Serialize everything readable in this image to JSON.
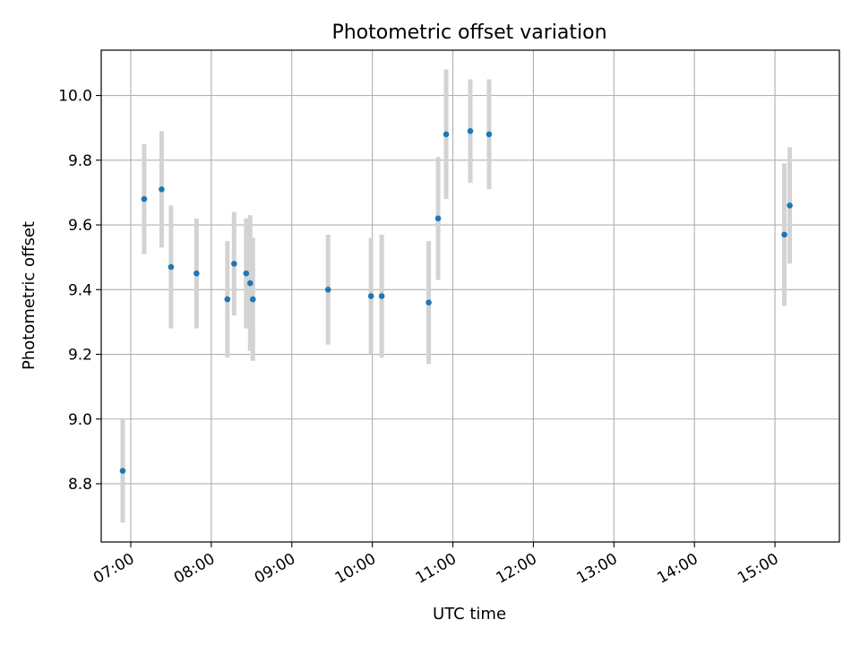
{
  "chart_data": {
    "type": "scatter",
    "title": "Photometric offset variation",
    "xlabel": "UTC time",
    "ylabel": "Photometric offset",
    "x_axis": "time (HH:MM, UTC)",
    "xlim": [
      "06:38",
      "15:48"
    ],
    "ylim": [
      8.62,
      10.14
    ],
    "xticks": [
      "07:00",
      "08:00",
      "09:00",
      "10:00",
      "11:00",
      "12:00",
      "13:00",
      "14:00",
      "15:00"
    ],
    "yticks": [
      "8.8",
      "9.0",
      "9.2",
      "9.4",
      "9.6",
      "9.8",
      "10.0"
    ],
    "grid": true,
    "x_tick_rotation": "30°",
    "series": [
      {
        "marker_color": "#1f77b4",
        "errorbar_color": "#d3d3d3",
        "points": [
          {
            "x": "06:54",
            "y": 8.84,
            "err": 0.16
          },
          {
            "x": "07:10",
            "y": 9.68,
            "err": 0.17
          },
          {
            "x": "07:23",
            "y": 9.71,
            "err": 0.18
          },
          {
            "x": "07:30",
            "y": 9.47,
            "err": 0.19
          },
          {
            "x": "07:49",
            "y": 9.45,
            "err": 0.17
          },
          {
            "x": "08:12",
            "y": 9.37,
            "err": 0.18
          },
          {
            "x": "08:17",
            "y": 9.48,
            "err": 0.16
          },
          {
            "x": "08:26",
            "y": 9.45,
            "err": 0.17
          },
          {
            "x": "08:29",
            "y": 9.42,
            "err": 0.21
          },
          {
            "x": "08:31",
            "y": 9.37,
            "err": 0.19
          },
          {
            "x": "09:27",
            "y": 9.4,
            "err": 0.17
          },
          {
            "x": "09:59",
            "y": 9.38,
            "err": 0.18
          },
          {
            "x": "10:07",
            "y": 9.38,
            "err": 0.19
          },
          {
            "x": "10:42",
            "y": 9.36,
            "err": 0.19
          },
          {
            "x": "10:49",
            "y": 9.62,
            "err": 0.19
          },
          {
            "x": "10:55",
            "y": 9.88,
            "err": 0.2
          },
          {
            "x": "11:13",
            "y": 9.89,
            "err": 0.16
          },
          {
            "x": "11:27",
            "y": 9.88,
            "err": 0.17
          },
          {
            "x": "15:07",
            "y": 9.57,
            "err": 0.22
          },
          {
            "x": "15:11",
            "y": 9.66,
            "err": 0.18
          }
        ]
      }
    ]
  }
}
